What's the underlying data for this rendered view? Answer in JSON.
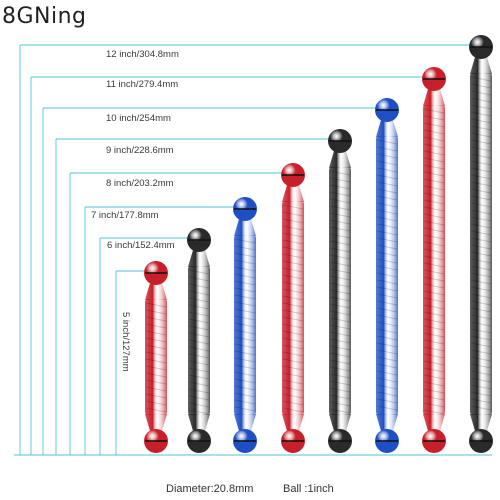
{
  "brand": {
    "name": "8GNing"
  },
  "sizes": [
    {
      "label": "5 inch/127mm",
      "color": "red"
    },
    {
      "label": "6 inch/152.4mm",
      "color": "black"
    },
    {
      "label": "7 inch/177.8mm",
      "color": "blue"
    },
    {
      "label": "8 inch/203.2mm",
      "color": "red"
    },
    {
      "label": "9 inch/228.6mm",
      "color": "black"
    },
    {
      "label": "10 inch/254mm",
      "color": "blue"
    },
    {
      "label": "11 inch/279.4mm",
      "color": "red"
    },
    {
      "label": "12 inch/304.8mm",
      "color": "black"
    }
  ],
  "specs": {
    "diameter": "Diameter:20.8mm",
    "ball": "Ball :1inch"
  },
  "colors": {
    "guide": "#4fc3d9",
    "red": "#c8202a",
    "black": "#2a2a2a",
    "blue": "#1f4fc4"
  }
}
